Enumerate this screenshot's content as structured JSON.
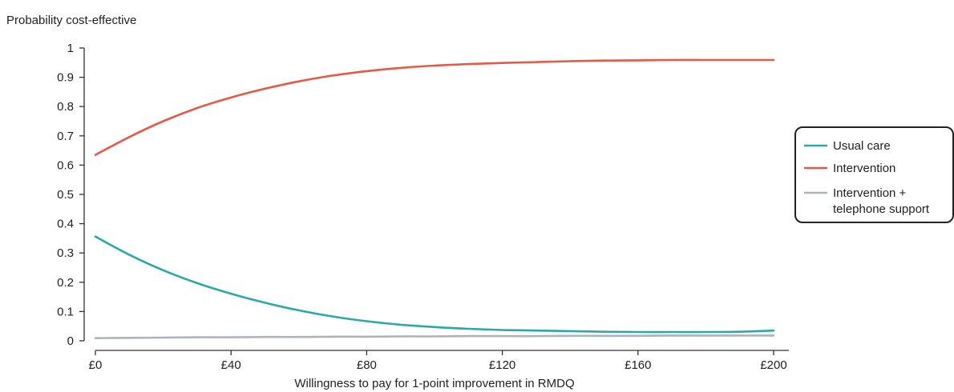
{
  "chart_data": {
    "type": "line",
    "ylabel": "Probability cost-effective",
    "xlabel": "Willingness to pay for 1-point improvement in RMDQ",
    "xlim": [
      0,
      200
    ],
    "ylim": [
      0,
      1
    ],
    "x_ticks": [
      0,
      40,
      80,
      120,
      160,
      200
    ],
    "x_tick_labels": [
      "£0",
      "£40",
      "£80",
      "£120",
      "£160",
      "£200"
    ],
    "y_ticks": [
      0,
      0.1,
      0.2,
      0.3,
      0.4,
      0.5,
      0.6,
      0.7,
      0.8,
      0.9,
      1
    ],
    "y_tick_labels": [
      "0",
      "0.1",
      "0.2",
      "0.3",
      "0.4",
      "0.5",
      "0.6",
      "0.7",
      "0.8",
      "0.9",
      "1"
    ],
    "grid": false,
    "legend_position": "right",
    "x": [
      0,
      10,
      20,
      30,
      40,
      50,
      60,
      70,
      80,
      90,
      100,
      110,
      120,
      130,
      140,
      150,
      160,
      170,
      180,
      190,
      200
    ],
    "series": [
      {
        "name": "Usual care",
        "color": "#2aa9a6",
        "values": [
          0.356,
          0.294,
          0.241,
          0.197,
          0.161,
          0.13,
          0.104,
          0.083,
          0.067,
          0.055,
          0.047,
          0.041,
          0.037,
          0.035,
          0.033,
          0.031,
          0.03,
          0.03,
          0.03,
          0.031,
          0.035
        ]
      },
      {
        "name": "Intervention",
        "color": "#e65a45",
        "values": [
          0.635,
          0.696,
          0.75,
          0.795,
          0.831,
          0.861,
          0.886,
          0.906,
          0.921,
          0.932,
          0.94,
          0.945,
          0.949,
          0.952,
          0.955,
          0.957,
          0.958,
          0.959,
          0.959,
          0.959,
          0.959
        ]
      },
      {
        "name": "Intervention + telephone support",
        "legend_lines": [
          "Intervention +",
          "telephone support"
        ],
        "color": "#aab4bd",
        "values": [
          0.009,
          0.01,
          0.011,
          0.012,
          0.012,
          0.013,
          0.013,
          0.014,
          0.014,
          0.015,
          0.015,
          0.016,
          0.016,
          0.016,
          0.017,
          0.017,
          0.017,
          0.018,
          0.018,
          0.018,
          0.018
        ]
      }
    ]
  }
}
